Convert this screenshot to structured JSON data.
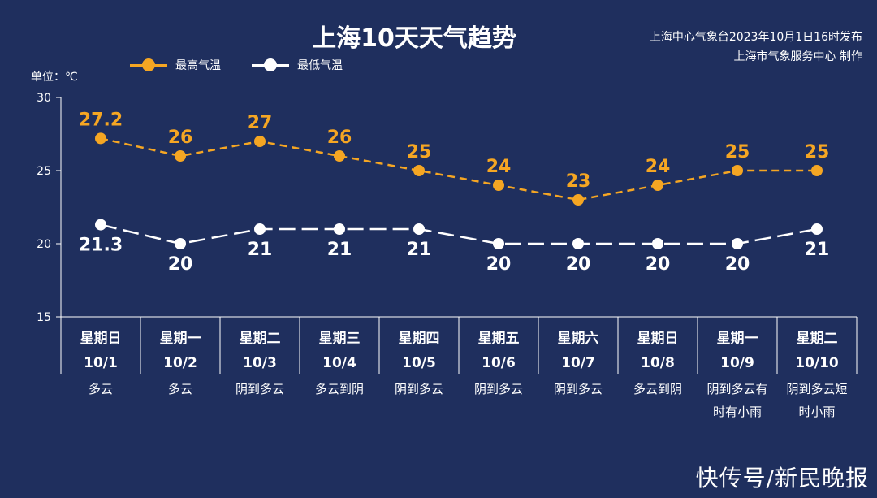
{
  "header": {
    "title": "上海10天天气趋势",
    "source_line1": "上海中心气象台2023年10月1日16时发布",
    "source_line2": "上海市气象服务中心 制作",
    "unit": "单位：℃"
  },
  "watermark": "快传号/新民晚报",
  "colors": {
    "background": "#1f2f5e",
    "high": "#f5a623",
    "low": "#ffffff",
    "axis": "#ffffff"
  },
  "chart_data": {
    "type": "line",
    "title": "上海10天天气趋势",
    "ylabel": "单位：℃",
    "ylim": [
      15,
      30
    ],
    "yticks": [
      15,
      20,
      25,
      30
    ],
    "grid": false,
    "legend_position": "top-left",
    "categories": [
      "10/1",
      "10/2",
      "10/3",
      "10/4",
      "10/5",
      "10/6",
      "10/7",
      "10/8",
      "10/9",
      "10/10"
    ],
    "weekdays": [
      "星期日",
      "星期一",
      "星期二",
      "星期三",
      "星期四",
      "星期五",
      "星期六",
      "星期日",
      "星期一",
      "星期二"
    ],
    "weather": [
      [
        "多云"
      ],
      [
        "多云"
      ],
      [
        "阴到多云"
      ],
      [
        "多云到阴"
      ],
      [
        "阴到多云"
      ],
      [
        "阴到多云"
      ],
      [
        "阴到多云"
      ],
      [
        "多云到阴"
      ],
      [
        "阴到多云有",
        "时有小雨"
      ],
      [
        "阴到多云短",
        "时小雨"
      ]
    ],
    "series": [
      {
        "name": "最高气温",
        "values": [
          27.2,
          26,
          27,
          26,
          25,
          24,
          23,
          24,
          25,
          25
        ]
      },
      {
        "name": "最低气温",
        "values": [
          21.3,
          20,
          21,
          21,
          21,
          20,
          20,
          20,
          20,
          21
        ]
      }
    ]
  }
}
